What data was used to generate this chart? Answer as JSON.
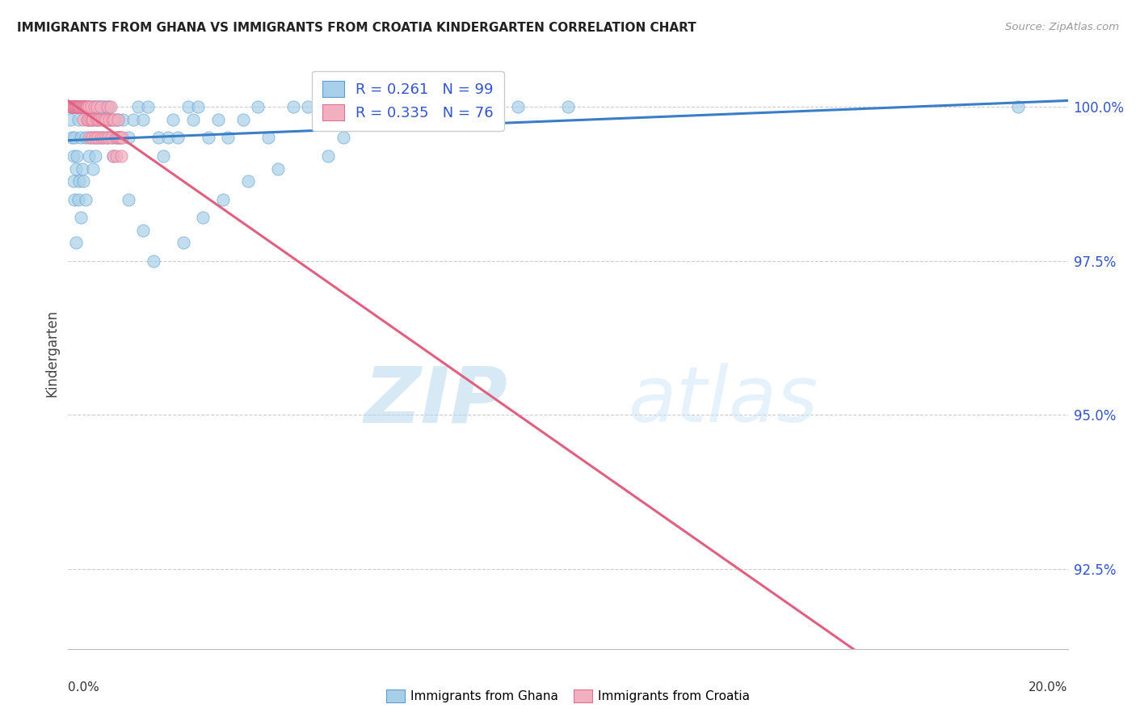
{
  "title": "IMMIGRANTS FROM GHANA VS IMMIGRANTS FROM CROATIA KINDERGARTEN CORRELATION CHART",
  "source": "Source: ZipAtlas.com",
  "ylabel": "Kindergarten",
  "ytick_values": [
    92.5,
    95.0,
    97.5,
    100.0
  ],
  "xmin": 0.0,
  "xmax": 20.0,
  "ymin": 91.2,
  "ymax": 100.8,
  "legend_ghana": "Immigrants from Ghana",
  "legend_croatia": "Immigrants from Croatia",
  "R_ghana": 0.261,
  "N_ghana": 99,
  "R_croatia": 0.335,
  "N_croatia": 76,
  "ghana_color": "#a8cfe8",
  "croatia_color": "#f2afc0",
  "ghana_edge_color": "#5a9fd4",
  "croatia_edge_color": "#e07090",
  "ghana_line_color": "#3a7ec8",
  "croatia_line_color": "#e06080",
  "watermark_zip": "ZIP",
  "watermark_atlas": "atlas",
  "background_color": "#ffffff",
  "grid_color": "#cccccc",
  "ghana_scatter_x": [
    0.05,
    0.05,
    0.08,
    0.08,
    0.1,
    0.1,
    0.1,
    0.12,
    0.12,
    0.12,
    0.15,
    0.15,
    0.15,
    0.18,
    0.18,
    0.2,
    0.2,
    0.22,
    0.22,
    0.25,
    0.25,
    0.25,
    0.28,
    0.28,
    0.3,
    0.3,
    0.33,
    0.35,
    0.35,
    0.38,
    0.4,
    0.42,
    0.42,
    0.45,
    0.45,
    0.48,
    0.5,
    0.5,
    0.52,
    0.55,
    0.55,
    0.58,
    0.6,
    0.6,
    0.62,
    0.65,
    0.68,
    0.7,
    0.72,
    0.75,
    0.78,
    0.8,
    0.82,
    0.85,
    0.88,
    0.9,
    0.95,
    0.98,
    1.0,
    1.05,
    1.1,
    1.2,
    1.3,
    1.4,
    1.5,
    1.6,
    1.8,
    1.9,
    2.0,
    2.1,
    2.2,
    2.4,
    2.5,
    2.6,
    2.8,
    3.0,
    3.2,
    3.5,
    3.8,
    4.0,
    4.5,
    4.8,
    5.0,
    5.5,
    6.0,
    7.0,
    8.0,
    9.0,
    10.0,
    1.2,
    1.5,
    1.7,
    2.3,
    2.7,
    3.1,
    3.6,
    4.2,
    5.2,
    19.0
  ],
  "ghana_scatter_y": [
    100.0,
    99.8,
    100.0,
    99.5,
    100.0,
    99.2,
    98.8,
    100.0,
    99.5,
    98.5,
    100.0,
    99.0,
    97.8,
    100.0,
    99.2,
    99.8,
    98.5,
    100.0,
    98.8,
    100.0,
    99.5,
    98.2,
    100.0,
    99.0,
    100.0,
    98.8,
    100.0,
    99.5,
    98.5,
    100.0,
    99.8,
    100.0,
    99.2,
    100.0,
    99.5,
    99.8,
    100.0,
    99.0,
    99.5,
    100.0,
    99.2,
    99.8,
    100.0,
    99.5,
    100.0,
    100.0,
    99.5,
    100.0,
    99.8,
    100.0,
    99.5,
    99.8,
    100.0,
    99.8,
    99.5,
    99.2,
    99.8,
    99.5,
    99.8,
    99.5,
    99.8,
    99.5,
    99.8,
    100.0,
    99.8,
    100.0,
    99.5,
    99.2,
    99.5,
    99.8,
    99.5,
    100.0,
    99.8,
    100.0,
    99.5,
    99.8,
    99.5,
    99.8,
    100.0,
    99.5,
    100.0,
    100.0,
    99.8,
    99.5,
    100.0,
    100.0,
    100.0,
    100.0,
    100.0,
    98.5,
    98.0,
    97.5,
    97.8,
    98.2,
    98.5,
    98.8,
    99.0,
    99.2,
    100.0
  ],
  "croatia_scatter_x": [
    0.05,
    0.06,
    0.08,
    0.08,
    0.09,
    0.1,
    0.1,
    0.12,
    0.12,
    0.14,
    0.15,
    0.15,
    0.15,
    0.16,
    0.18,
    0.18,
    0.19,
    0.2,
    0.2,
    0.22,
    0.22,
    0.22,
    0.24,
    0.25,
    0.25,
    0.28,
    0.28,
    0.28,
    0.29,
    0.3,
    0.3,
    0.32,
    0.33,
    0.35,
    0.36,
    0.38,
    0.38,
    0.39,
    0.4,
    0.42,
    0.42,
    0.45,
    0.46,
    0.48,
    0.48,
    0.5,
    0.52,
    0.55,
    0.56,
    0.58,
    0.6,
    0.6,
    0.62,
    0.65,
    0.66,
    0.68,
    0.7,
    0.72,
    0.75,
    0.76,
    0.78,
    0.8,
    0.82,
    0.85,
    0.86,
    0.88,
    0.9,
    0.92,
    0.95,
    0.96,
    0.98,
    1.0,
    1.02,
    1.05,
    1.06,
    1.08
  ],
  "croatia_scatter_y": [
    100.0,
    100.0,
    100.0,
    100.0,
    100.0,
    100.0,
    100.0,
    100.0,
    100.0,
    100.0,
    100.0,
    100.0,
    100.0,
    100.0,
    100.0,
    100.0,
    100.0,
    100.0,
    100.0,
    100.0,
    100.0,
    100.0,
    100.0,
    100.0,
    100.0,
    100.0,
    100.0,
    100.0,
    100.0,
    100.0,
    99.8,
    100.0,
    100.0,
    100.0,
    100.0,
    100.0,
    99.8,
    100.0,
    99.8,
    100.0,
    99.5,
    99.8,
    100.0,
    99.8,
    99.5,
    99.8,
    100.0,
    99.5,
    99.8,
    100.0,
    99.8,
    99.5,
    99.8,
    100.0,
    99.5,
    99.8,
    99.5,
    99.8,
    99.8,
    99.5,
    100.0,
    99.5,
    99.8,
    100.0,
    99.5,
    99.8,
    99.2,
    99.8,
    99.5,
    99.2,
    99.5,
    99.8,
    99.5,
    99.5,
    99.2,
    99.5
  ]
}
